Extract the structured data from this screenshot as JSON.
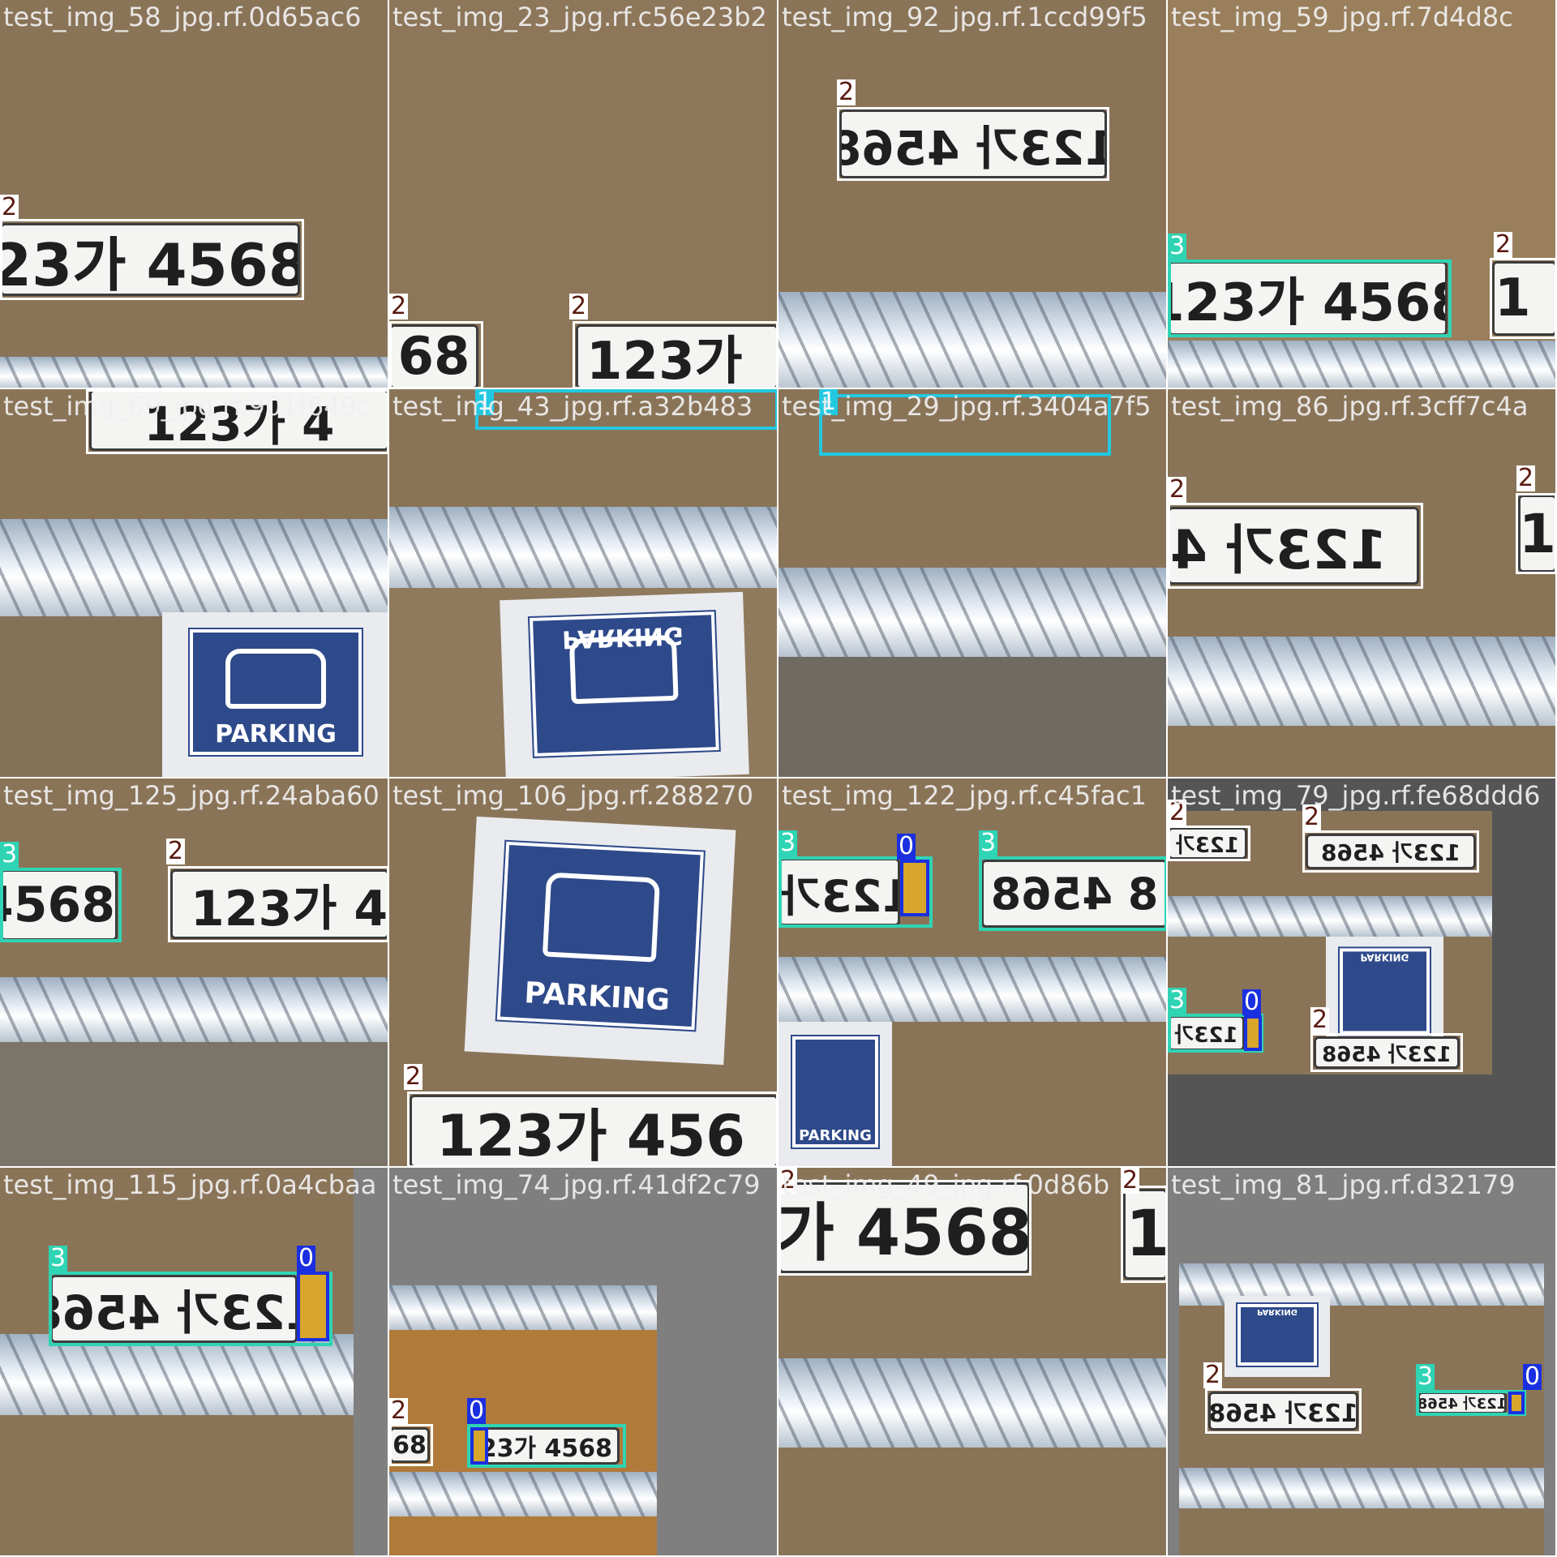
{
  "tiles": [
    {
      "caption": "test_img_58_jpg.rf.0d65ac6"
    },
    {
      "caption": "test_img_23_jpg.rf.c56e23b2"
    },
    {
      "caption": "test_img_92_jpg.rf.1ccd99f5"
    },
    {
      "caption": "test_img_59_jpg.rf.7d4d8c"
    },
    {
      "caption": "test_img_69_jpg.rf.901f649c"
    },
    {
      "caption": "test_img_43_jpg.rf.a32b483"
    },
    {
      "caption": "test_img_29_jpg.rf.3404a7f5"
    },
    {
      "caption": "test_img_86_jpg.rf.3cff7c4a"
    },
    {
      "caption": "test_img_125_jpg.rf.24aba60"
    },
    {
      "caption": "test_img_106_jpg.rf.288270"
    },
    {
      "caption": "test_img_122_jpg.rf.c45fac1"
    },
    {
      "caption": "test_img_79_jpg.rf.fe68ddd6"
    },
    {
      "caption": "test_img_115_jpg.rf.0a4cbaa"
    },
    {
      "caption": "test_img_74_jpg.rf.41df2c79"
    },
    {
      "caption": "test_img_49_jpg.rf.0d86b"
    },
    {
      "caption": "test_img_81_jpg.rf.d32179"
    }
  ],
  "plate_texts": {
    "a": "23가 4568",
    "b": "68",
    "c": "123가",
    "d": "123가 4568",
    "e": "123가 4",
    "f": "4568",
    "g": "123가 45",
    "h": "123가 456",
    "i": "123가",
    "j": "8 4568",
    "k": "가 4568",
    "l": "1"
  },
  "sign_text": "PARKING",
  "class_labels": {
    "c0": "0",
    "c1": "1",
    "c2": "2",
    "c3": "3"
  },
  "colors": {
    "c0": "#1a2fe0",
    "c1": "#22c8e0",
    "c2": "#ffffff",
    "c3": "#2fd4b4"
  }
}
